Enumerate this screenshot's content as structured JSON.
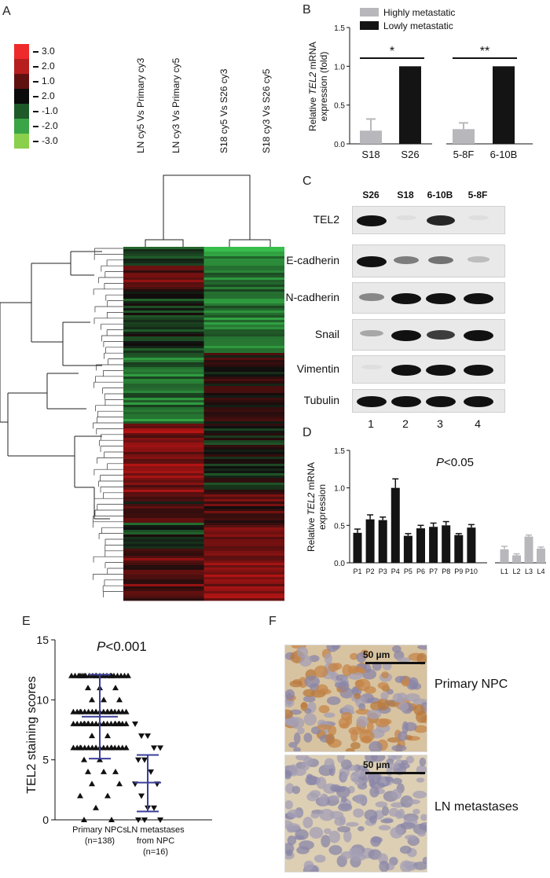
{
  "panel_labels": {
    "A": "A",
    "B": "B",
    "C": "C",
    "D": "D",
    "E": "E",
    "F": "F"
  },
  "colors": {
    "high": "#b8b8bc",
    "low": "#141414",
    "red": "#e4282a",
    "green": "#57c043",
    "blue": "#3a3f9a",
    "stain": "#c08850"
  },
  "panel_a": {
    "legend": [
      "3.0",
      "2.0",
      "1.0",
      "2.0",
      "-1.0",
      "-2.0",
      "-3.0"
    ],
    "legend_colors": [
      "#ee2a2a",
      "#b71e1e",
      "#611010",
      "#0b0b0b",
      "#1d5a28",
      "#3aa546",
      "#8ad04c"
    ],
    "columns": [
      "LN cy5 Vs Primary cy3",
      "LN cy3 Vs Primary cy5",
      "S18 cy5 Vs S26 cy3",
      "S18 cy3 Vs S26 cy5"
    ]
  },
  "chart_data": [
    {
      "id": "B",
      "type": "bar",
      "ylabel_pre": "Relative ",
      "ylabel_italic": "TEL2",
      "ylabel_post": " mRNA",
      "ylabel_line2": "expression (fold)",
      "ylim": [
        0,
        1.5
      ],
      "yticks": [
        "0.0",
        "0.5",
        "1.0",
        "1.5"
      ],
      "legend": [
        "Highly metastatic",
        "Lowly metastatic"
      ],
      "categories": [
        "S18",
        "S26",
        "5-8F",
        "6-10B"
      ],
      "values": [
        0.17,
        1.0,
        0.19,
        1.0
      ],
      "errors": [
        0.15,
        0,
        0.08,
        0
      ],
      "groups": [
        "high",
        "low",
        "high",
        "low"
      ],
      "significance": [
        "*",
        "**"
      ]
    },
    {
      "id": "D",
      "type": "bar",
      "ylabel_pre": "Relative ",
      "ylabel_italic": "TEL2",
      "ylabel_post": " mRNA",
      "ylabel_line2": "expression",
      "ylim": [
        0,
        1.5
      ],
      "yticks": [
        "0.0",
        "0.5",
        "1.0",
        "1.5"
      ],
      "annotation_italic": "P",
      "annotation_rest": "<0.05",
      "categories": [
        "P1",
        "P2",
        "P3",
        "P4",
        "P5",
        "P6",
        "P7",
        "P8",
        "P9",
        "P10",
        "L1",
        "L2",
        "L3",
        "L4"
      ],
      "values": [
        0.4,
        0.58,
        0.57,
        1.0,
        0.36,
        0.46,
        0.48,
        0.5,
        0.37,
        0.47,
        0.18,
        0.1,
        0.35,
        0.19
      ],
      "errors": [
        0.05,
        0.06,
        0.04,
        0.12,
        0.03,
        0.04,
        0.05,
        0.05,
        0.02,
        0.04,
        0.04,
        0.02,
        0.02,
        0.02
      ],
      "groups": [
        "low",
        "low",
        "low",
        "low",
        "low",
        "low",
        "low",
        "low",
        "low",
        "low",
        "high",
        "high",
        "high",
        "high"
      ]
    },
    {
      "id": "E",
      "type": "scatter",
      "ylabel": "TEL2 staining scores",
      "ylim": [
        0,
        15
      ],
      "yticks": [
        "0",
        "5",
        "10",
        "15"
      ],
      "annotation_italic": "P",
      "annotation_rest": "<0.001",
      "groups": [
        {
          "label": "Primary NPCs",
          "n": "(n=138)",
          "mean": 8.6,
          "sd_low": 5.1,
          "sd_high": 12.1
        },
        {
          "label": "LN metastases",
          "label2": "from NPC",
          "n": "(n=16)",
          "mean": 3.1,
          "sd_low": 0.7,
          "sd_high": 5.4
        }
      ]
    }
  ],
  "panel_c": {
    "lanes": [
      "S26",
      "S18",
      "6-10B",
      "5-8F"
    ],
    "lane_numbers": [
      "1",
      "2",
      "3",
      "4"
    ],
    "proteins": [
      "TEL2",
      "E-cadherin",
      "N-cadherin",
      "Snail",
      "Vimentin",
      "Tubulin"
    ],
    "intensity": [
      [
        1,
        0.05,
        0.9,
        0.02
      ],
      [
        1,
        0.5,
        0.55,
        0.2
      ],
      [
        0.45,
        1,
        1,
        1
      ],
      [
        0.3,
        1,
        0.8,
        1
      ],
      [
        0.05,
        1,
        1,
        1
      ],
      [
        1,
        1,
        1,
        1
      ]
    ]
  },
  "panel_f": {
    "scale": "50 µm",
    "labels": [
      "Primary NPC",
      "LN metastases"
    ]
  }
}
